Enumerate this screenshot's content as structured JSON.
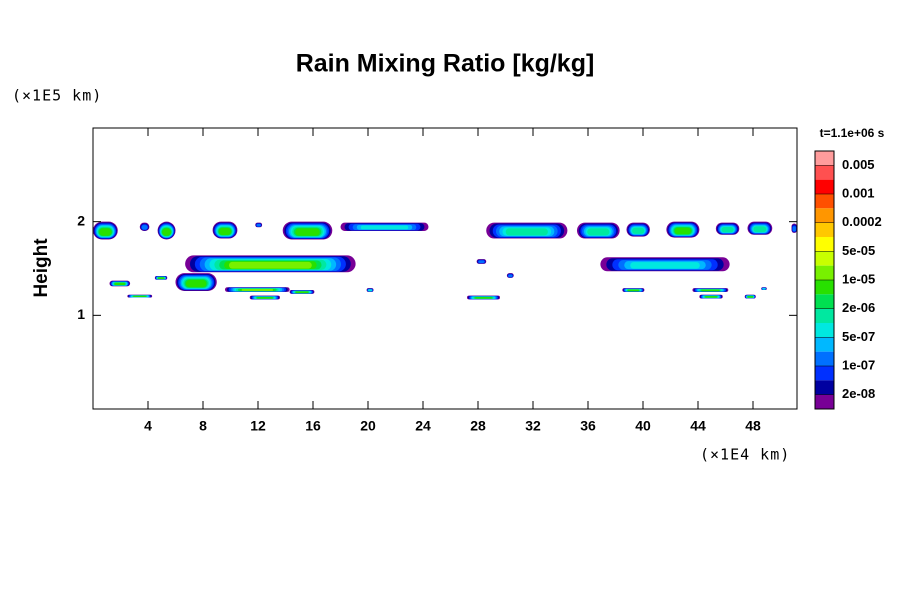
{
  "chart_data": {
    "type": "contour",
    "title": "Rain Mixing Ratio [kg/kg]",
    "y_unit": "(×1E5 km)",
    "x_unit": "(×1E4 km)",
    "ylabel": "Height",
    "colorbar_title": "t=1.1e+06 s",
    "xlim": [
      0,
      51.2
    ],
    "ylim": [
      0,
      3
    ],
    "xticks": [
      4,
      8,
      12,
      16,
      20,
      24,
      28,
      32,
      36,
      40,
      44,
      48
    ],
    "yticks": [
      1,
      2
    ],
    "colorbar_ticks": [
      0.005,
      0.001,
      0.0002,
      {
        "value": 5e-05,
        "label": "5e-05"
      },
      {
        "value": 1e-05,
        "label": "1e-05"
      },
      {
        "value": 2e-06,
        "label": "2e-06"
      },
      {
        "value": 5e-07,
        "label": "5e-07"
      },
      {
        "value": 1e-07,
        "label": "1e-07"
      },
      {
        "value": 2e-08,
        "label": "2e-08"
      }
    ],
    "colors": [
      "#ff9c9c",
      "#ff5050",
      "#ff0000",
      "#ff5000",
      "#ff9600",
      "#ffc800",
      "#ffff00",
      "#c8ff00",
      "#78f000",
      "#28e000",
      "#00e050",
      "#00e8a0",
      "#00e8e0",
      "#00b8ff",
      "#0070ff",
      "#0030ff",
      "#0000a0",
      "#780096"
    ],
    "regions": [
      {
        "x": [
          0,
          1.8
        ],
        "y": [
          1.81,
          2.0
        ],
        "peak": 5e-06
      },
      {
        "x": [
          3.4,
          4.1
        ],
        "y": [
          1.9,
          1.99
        ],
        "peak": 1e-07
      },
      {
        "x": [
          4.7,
          6.0
        ],
        "y": [
          1.81,
          2.0
        ],
        "peak": 5e-06
      },
      {
        "x": [
          8.7,
          10.5
        ],
        "y": [
          1.82,
          2.0
        ],
        "peak": 5e-06
      },
      {
        "x": [
          11.8,
          12.3
        ],
        "y": [
          1.94,
          1.99
        ],
        "peak": 1e-07
      },
      {
        "x": [
          13.8,
          17.4
        ],
        "y": [
          1.81,
          2.0
        ],
        "peak": 5e-06
      },
      {
        "x": [
          18.0,
          24.4
        ],
        "y": [
          1.9,
          1.99
        ],
        "peak": 5e-07
      },
      {
        "x": [
          28.6,
          34.5
        ],
        "y": [
          1.82,
          1.99
        ],
        "peak": 1e-06
      },
      {
        "x": [
          35.2,
          38.3
        ],
        "y": [
          1.82,
          1.99
        ],
        "peak": 1e-06
      },
      {
        "x": [
          38.8,
          40.5
        ],
        "y": [
          1.84,
          1.99
        ],
        "peak": 1e-06
      },
      {
        "x": [
          41.7,
          44.1
        ],
        "y": [
          1.83,
          2.0
        ],
        "peak": 5e-06
      },
      {
        "x": [
          45.3,
          47.0
        ],
        "y": [
          1.86,
          1.99
        ],
        "peak": 1e-06
      },
      {
        "x": [
          47.6,
          49.4
        ],
        "y": [
          1.86,
          2.0
        ],
        "peak": 1e-06
      },
      {
        "x": [
          50.8,
          51.2
        ],
        "y": [
          1.88,
          1.98
        ],
        "peak": 1e-07
      },
      {
        "x": [
          6.7,
          19.1
        ],
        "y": [
          1.46,
          1.64
        ],
        "peak": 1e-05
      },
      {
        "x": [
          36.9,
          46.3
        ],
        "y": [
          1.47,
          1.62
        ],
        "peak": 5e-07
      },
      {
        "x": [
          27.9,
          28.6
        ],
        "y": [
          1.55,
          1.6
        ],
        "peak": 1e-07
      },
      {
        "x": [
          1.2,
          2.7
        ],
        "y": [
          1.31,
          1.37
        ],
        "peak": 5e-06
      },
      {
        "x": [
          4.5,
          5.4
        ],
        "y": [
          1.38,
          1.42
        ],
        "peak": 5e-06
      },
      {
        "x": [
          2.5,
          4.3
        ],
        "y": [
          1.19,
          1.22
        ],
        "peak": 5e-06
      },
      {
        "x": [
          6.0,
          9.0
        ],
        "y": [
          1.26,
          1.45
        ],
        "peak": 5e-06
      },
      {
        "x": [
          9.6,
          14.3
        ],
        "y": [
          1.25,
          1.3
        ],
        "peak": 1e-05
      },
      {
        "x": [
          14.3,
          16.1
        ],
        "y": [
          1.23,
          1.27
        ],
        "peak": 5e-06
      },
      {
        "x": [
          11.4,
          13.6
        ],
        "y": [
          1.17,
          1.21
        ],
        "peak": 5e-06
      },
      {
        "x": [
          27.2,
          29.6
        ],
        "y": [
          1.17,
          1.21
        ],
        "peak": 5e-06
      },
      {
        "x": [
          19.9,
          20.4
        ],
        "y": [
          1.25,
          1.29
        ],
        "peak": 5e-07
      },
      {
        "x": [
          30.1,
          30.6
        ],
        "y": [
          1.4,
          1.45
        ],
        "peak": 1e-07
      },
      {
        "x": [
          38.5,
          40.1
        ],
        "y": [
          1.25,
          1.29
        ],
        "peak": 5e-06
      },
      {
        "x": [
          43.6,
          46.2
        ],
        "y": [
          1.25,
          1.29
        ],
        "peak": 5e-06
      },
      {
        "x": [
          44.1,
          45.8
        ],
        "y": [
          1.18,
          1.22
        ],
        "peak": 5e-06
      },
      {
        "x": [
          47.4,
          48.2
        ],
        "y": [
          1.18,
          1.22
        ],
        "peak": 5e-06
      },
      {
        "x": [
          48.6,
          49.0
        ],
        "y": [
          1.27,
          1.3
        ],
        "peak": 5e-07
      }
    ]
  }
}
